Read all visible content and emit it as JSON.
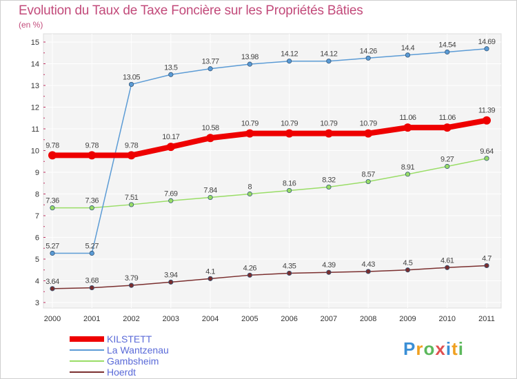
{
  "chart_data": {
    "type": "line",
    "title": "Evolution du Taux de Taxe Foncière sur les Propriétés Bâties",
    "subtitle": "(en %)",
    "xlabel": "",
    "ylabel": "",
    "x": [
      "2000",
      "2001",
      "2002",
      "2003",
      "2004",
      "2005",
      "2006",
      "2007",
      "2008",
      "2009",
      "2010",
      "2011"
    ],
    "ylim": [
      3,
      15
    ],
    "yticks": [
      "3",
      "4",
      "5",
      "6",
      "7",
      "8",
      "9",
      "10",
      "11",
      "12",
      "13",
      "14",
      "15"
    ],
    "grid": true,
    "legend_position": "bottom-left",
    "series": [
      {
        "name": "KILSTETT",
        "color": "#ee0000",
        "values": [
          9.78,
          9.78,
          9.78,
          10.17,
          10.58,
          10.79,
          10.79,
          10.79,
          10.79,
          11.06,
          11.06,
          11.39
        ],
        "labels": [
          "9.78",
          "9.78",
          "9.78",
          "10.17",
          "10.58",
          "10.79",
          "10.79",
          "10.79",
          "10.79",
          "11.06",
          "11.06",
          "11.39"
        ]
      },
      {
        "name": "La Wantzenau",
        "color": "#5b9bd5",
        "values": [
          5.27,
          5.27,
          13.05,
          13.5,
          13.77,
          13.98,
          14.12,
          14.12,
          14.26,
          14.4,
          14.54,
          14.69
        ],
        "labels": [
          "5.27",
          "5.27",
          "13.05",
          "13.5",
          "13.77",
          "13.98",
          "14.12",
          "14.12",
          "14.26",
          "14.4",
          "14.54",
          "14.69"
        ]
      },
      {
        "name": "Gambsheim",
        "color": "#99dd66",
        "values": [
          7.36,
          7.36,
          7.51,
          7.69,
          7.84,
          8,
          8.16,
          8.32,
          8.57,
          8.91,
          9.27,
          9.64
        ],
        "labels": [
          "7.36",
          "7.36",
          "7.51",
          "7.69",
          "7.84",
          "8",
          "8.16",
          "8.32",
          "8.57",
          "8.91",
          "9.27",
          "9.64"
        ]
      },
      {
        "name": "Hoerdt",
        "color": "#7a2e2e",
        "values": [
          3.64,
          3.68,
          3.79,
          3.94,
          4.1,
          4.26,
          4.35,
          4.39,
          4.43,
          4.5,
          4.61,
          4.7
        ],
        "labels": [
          "3.64",
          "3.68",
          "3.79",
          "3.94",
          "4.1",
          "4.26",
          "4.35",
          "4.39",
          "4.43",
          "4.5",
          "4.61",
          "4.7"
        ]
      }
    ]
  },
  "logo": {
    "letters": [
      "P",
      "r",
      "o",
      "x",
      "i",
      "t",
      "i"
    ],
    "colors": [
      "#3a8fd6",
      "#f0a020",
      "#5cb85c",
      "#e05050",
      "#3a8fd6",
      "#f0a020",
      "#5cb85c"
    ]
  }
}
